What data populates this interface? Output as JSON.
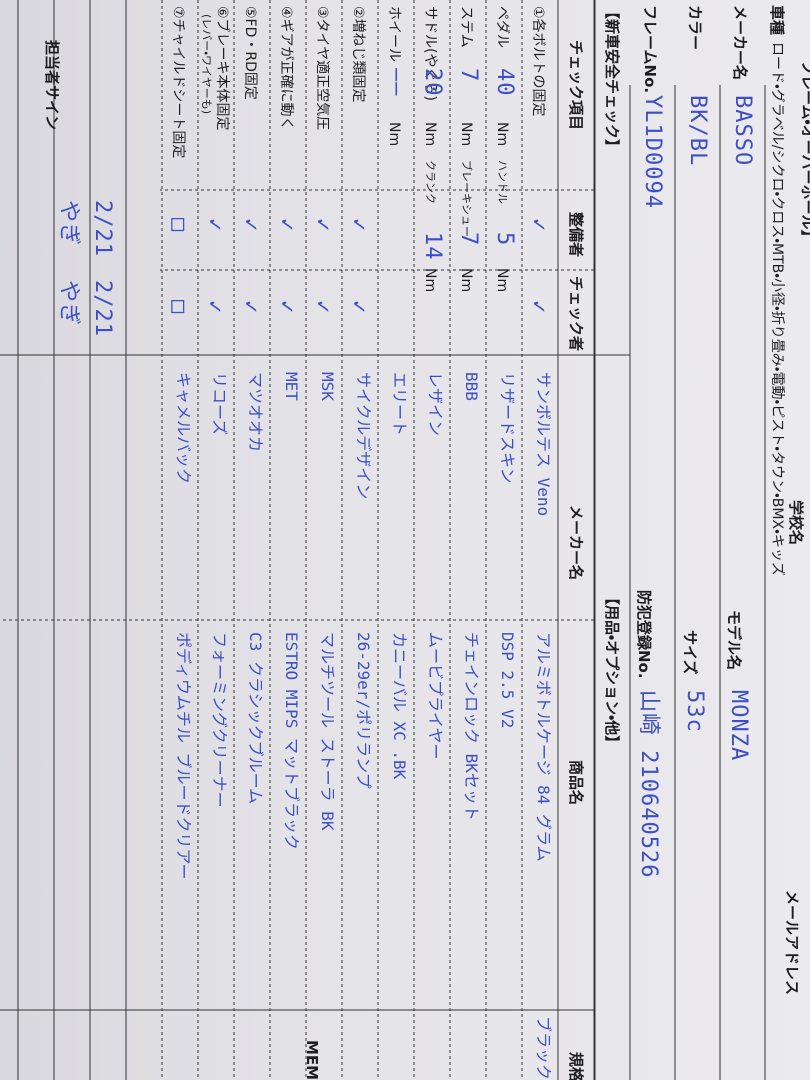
{
  "header": {
    "title": "フレーム・オーバーホール】",
    "school_label": "学校名",
    "email_label": "メールアドレス",
    "vehicle_label": "車種",
    "vehicle_options": "ロード・グラベル/シクロ・クロス・MTB・小径・折り畳み・電動・ピスト・タウン・BMX・キッズ",
    "maker_label": "メーカー名",
    "maker": "BASSO",
    "model_label": "モデル名",
    "model": "MONZA",
    "color_label": "カラー",
    "color": "BK/BL",
    "size_label": "サイズ",
    "size": "53c",
    "frame_label": "フレームNo.",
    "frame": "YL1D0094",
    "registration_label": "防犯登録No.",
    "registration": "山崎 210640526"
  },
  "check": {
    "title": "【新車安全チェック】",
    "headers": [
      "チェック項目",
      "整備者",
      "チェック者"
    ],
    "rows": [
      {
        "item": "①各ボルトの固定",
        "mechanic": "✓",
        "checker": "✓"
      },
      {
        "parts": [
          "ペダル",
          "40",
          "Nm",
          "ハンドル",
          "5",
          "Nm"
        ]
      },
      {
        "parts": [
          "ステム",
          "7",
          "Nm",
          "ブレーキシュー",
          "7",
          "Nm"
        ]
      },
      {
        "parts": [
          "サドル(やぐら)",
          "20",
          "Nm",
          "クランク",
          "14",
          "Nm"
        ]
      },
      {
        "parts": [
          "ホイール",
          "——",
          "Nm"
        ]
      },
      {
        "item": "②増ねじ類固定",
        "mechanic": "✓",
        "checker": "✓"
      },
      {
        "item": "③タイヤ適正空気圧",
        "mechanic": "✓",
        "checker": "✓"
      },
      {
        "item": "④ギアが正確に動く",
        "mechanic": "✓",
        "checker": "✓"
      },
      {
        "item": "⑤FD・RD固定",
        "mechanic": "✓",
        "checker": "✓"
      },
      {
        "item": "⑥ブレーキ本体固定",
        "item2": "(レバー・ワイヤーも)",
        "mechanic": "✓",
        "checker": "✓"
      },
      {
        "item": "⑦チャイルドシート固定",
        "mechanic": "□",
        "checker": "□"
      }
    ],
    "sign": {
      "label": "担当者サイン",
      "dates": [
        "2/21",
        "2/21"
      ],
      "names": [
        "やぎ",
        "やぎ"
      ]
    }
  },
  "options": {
    "title": "【用品・オプション・他】",
    "headers": [
      "メーカー名",
      "商品名",
      "規格"
    ],
    "rows": [
      {
        "maker": "サンボルテス Veno",
        "product": "アルミボトルケージ 84 グラム",
        "spec": "ブラック"
      },
      {
        "maker": "リザードスキン",
        "product": "DSP 2.5 V2"
      },
      {
        "maker": "BBB",
        "product": "チェインロック BKセット"
      },
      {
        "maker": "レザイン",
        "product": "ムービプライヤー"
      },
      {
        "maker": "エリート",
        "product": "カニーバル XC .BK"
      },
      {
        "maker": "サイクルデザイン",
        "product": "26-29er/ポリランプ"
      },
      {
        "maker": "MSK",
        "product": "マルチツール ストーラ BK"
      },
      {
        "maker": "MET",
        "product": "ESTRO MIPS マットブラック"
      },
      {
        "maker": "マツオオカ",
        "product": "C3 クラシックブルーム"
      },
      {
        "maker": "リコーズ",
        "product": "フォーミングクリーナー"
      },
      {
        "maker": "キャメルバック",
        "product": "ポディウムチル ブルードクリアー"
      }
    ]
  },
  "memo": "MEMO"
}
